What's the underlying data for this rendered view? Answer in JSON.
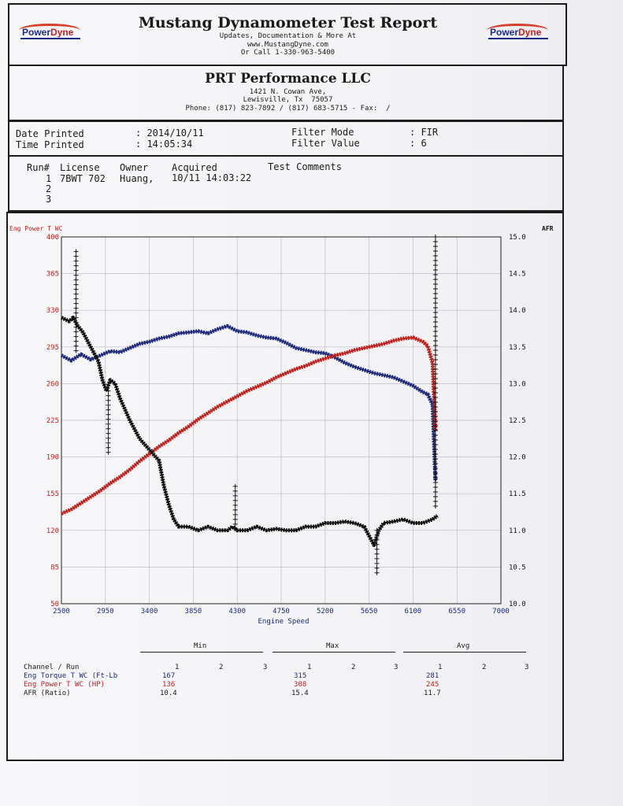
{
  "header": {
    "title": "Mustang Dynamometer Test Report",
    "line1": "Updates, Documentation & More At",
    "line2": "www.MustangDyne.com",
    "line3": "Or Call 1-330-963-5400",
    "logo_text_a": "Power",
    "logo_text_b": "Dyne"
  },
  "shop": {
    "name": "PRT Performance LLC",
    "address1": "1421 N. Cowan Ave,",
    "address2": "Lewisville, Tx  75057",
    "phone": "Phone: (817) 823-7892 / (817) 683-5715 - Fax:  /"
  },
  "meta": {
    "date_label": "Date Printed",
    "date_value": ": 2014/10/11",
    "time_label": "Time Printed",
    "time_value": ": 14:05:34",
    "filter_mode_label": "Filter Mode",
    "filter_mode_value": ": FIR",
    "filter_value_label": "Filter Value",
    "filter_value_value": ": 6"
  },
  "runs": {
    "headers": [
      "Run#",
      "License",
      "Owner",
      "Acquired",
      "Test Comments"
    ],
    "rows": [
      [
        "1",
        "7BWT 702",
        "Huang,",
        "10/11 14:03:22"
      ],
      [
        "2"
      ],
      [
        "3"
      ]
    ]
  },
  "chart_data": {
    "type": "line",
    "left_axis_label": "Eng Power T WC",
    "right_axis_label": "AFR",
    "xlabel": "Engine Speed",
    "x_ticks": [
      2500,
      2950,
      3400,
      3850,
      4300,
      4750,
      5200,
      5650,
      6100,
      6550,
      7000
    ],
    "xlim": [
      2500,
      7000
    ],
    "y_left_ticks": [
      400,
      365,
      330,
      295,
      260,
      225,
      190,
      155,
      120,
      85,
      50
    ],
    "ylim_left": [
      50,
      400
    ],
    "y_right_ticks": [
      "15.0",
      "14.5",
      "14.0",
      "13.5",
      "13.0",
      "12.5",
      "12.0",
      "11.5",
      "11.0",
      "10.5",
      "10.0"
    ],
    "ylim_right": [
      10.0,
      15.0
    ],
    "grid": true,
    "series": [
      {
        "name": "Eng Torque T WC (Ft-Lb)",
        "axis": "left",
        "color": "#1e2a78",
        "x": [
          2500,
          2600,
          2700,
          2800,
          2900,
          3000,
          3100,
          3200,
          3300,
          3400,
          3500,
          3600,
          3700,
          3800,
          3900,
          4000,
          4100,
          4200,
          4300,
          4400,
          4500,
          4600,
          4700,
          4800,
          4900,
          5000,
          5100,
          5200,
          5300,
          5400,
          5500,
          5600,
          5700,
          5800,
          5900,
          6000,
          6100,
          6200,
          6250,
          6300,
          6330
        ],
        "y": [
          287,
          282,
          288,
          283,
          287,
          291,
          290,
          294,
          298,
          300,
          303,
          305,
          308,
          309,
          310,
          308,
          312,
          315,
          310,
          309,
          306,
          304,
          303,
          299,
          294,
          292,
          290,
          289,
          285,
          280,
          276,
          273,
          270,
          268,
          266,
          262,
          258,
          252,
          250,
          240,
          167
        ]
      },
      {
        "name": "Eng Power T WC (HP)",
        "axis": "left",
        "color": "#c0201c",
        "x": [
          2500,
          2600,
          2700,
          2800,
          2900,
          3000,
          3100,
          3200,
          3300,
          3400,
          3500,
          3600,
          3700,
          3800,
          3900,
          4000,
          4100,
          4200,
          4300,
          4400,
          4500,
          4600,
          4700,
          4800,
          4900,
          5000,
          5100,
          5200,
          5300,
          5400,
          5500,
          5600,
          5700,
          5800,
          5900,
          6000,
          6100,
          6200,
          6250,
          6300,
          6330
        ],
        "y": [
          136,
          140,
          146,
          152,
          158,
          165,
          171,
          178,
          186,
          193,
          200,
          206,
          213,
          219,
          226,
          232,
          238,
          243,
          248,
          253,
          257,
          261,
          266,
          270,
          274,
          277,
          281,
          284,
          287,
          289,
          292,
          294,
          296,
          298,
          301,
          303,
          304,
          300,
          296,
          280,
          215
        ]
      },
      {
        "name": "AFR (Ratio)",
        "axis": "right",
        "color": "#111111",
        "x": [
          2500,
          2580,
          2620,
          2660,
          2720,
          2780,
          2820,
          2880,
          2920,
          2960,
          3000,
          3050,
          3100,
          3150,
          3200,
          3300,
          3400,
          3500,
          3550,
          3600,
          3650,
          3700,
          3800,
          3900,
          4000,
          4100,
          4200,
          4250,
          4300,
          4400,
          4500,
          4600,
          4700,
          4800,
          4900,
          5000,
          5100,
          5200,
          5300,
          5400,
          5500,
          5600,
          5700,
          5750,
          5800,
          5900,
          6000,
          6100,
          6200,
          6300,
          6350
        ],
        "y": [
          13.9,
          13.85,
          13.9,
          13.8,
          13.7,
          13.55,
          13.45,
          13.3,
          13.05,
          12.9,
          13.05,
          13.0,
          12.8,
          12.65,
          12.5,
          12.25,
          12.1,
          11.95,
          11.6,
          11.35,
          11.15,
          11.05,
          11.05,
          11.0,
          11.05,
          11.0,
          11.0,
          11.05,
          11.0,
          11.0,
          11.05,
          11.0,
          11.02,
          11.0,
          11.0,
          11.05,
          11.05,
          11.1,
          11.1,
          11.12,
          11.1,
          11.05,
          10.8,
          11.0,
          11.1,
          11.12,
          11.15,
          11.1,
          11.1,
          11.15,
          11.2
        ]
      }
    ],
    "afr_spikes": [
      {
        "x": 2650,
        "y": [
          13.4,
          14.8
        ]
      },
      {
        "x": 2980,
        "y": [
          12.0,
          12.9
        ]
      },
      {
        "x": 4280,
        "y": [
          11.0,
          11.6
        ]
      },
      {
        "x": 5730,
        "y": [
          10.4,
          11.0
        ]
      },
      {
        "x": 6330,
        "y": [
          11.3,
          15.0
        ]
      }
    ]
  },
  "summary": {
    "group_headers": [
      "Min",
      "Max",
      "Avg"
    ],
    "channel_header": "Channel / Run",
    "run_cols": [
      "1",
      "2",
      "3"
    ],
    "rows": [
      {
        "label": "Eng Torque T WC (Ft-Lb",
        "min": "167",
        "max": "315",
        "avg": "281",
        "color": "#1e2a78"
      },
      {
        "label": "Eng Power T WC (HP)",
        "min": "136",
        "max": "308",
        "avg": "245",
        "color": "#c0201c"
      },
      {
        "label": "AFR (Ratio)",
        "min": "10.4",
        "max": "15.4",
        "avg": "11.7",
        "color": "#111111"
      }
    ]
  }
}
